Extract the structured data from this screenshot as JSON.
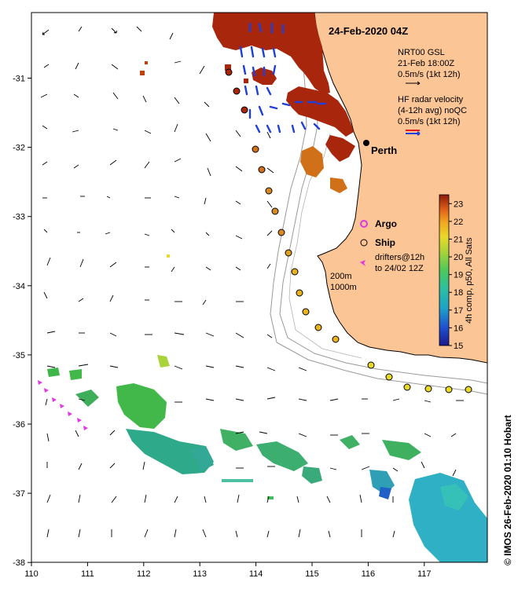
{
  "title": "24-Feb-2020 04Z",
  "city": "Perth",
  "legend": {
    "gsl_line1": "NRT00 GSL",
    "gsl_line2": "21-Feb 18:00Z",
    "gsl_line3": "0.5m/s (1kt 12h)",
    "hf_line1": "HF radar velocity",
    "hf_line2": "(4-12h avg) noQC",
    "hf_line3": "0.5m/s (1kt 12h)",
    "argo": "Argo",
    "ship": "Ship",
    "drifters_line1": "drifters@12h",
    "drifters_line2": "to 24/02 12Z",
    "depth_200": "200m",
    "depth_1000": "1000m"
  },
  "colorbar": {
    "label": "4h comp, p50, All Sats",
    "ticks": [
      "23",
      "22",
      "21",
      "20",
      "19",
      "18",
      "17",
      "16",
      "15"
    ],
    "min": 15,
    "max": 23.5
  },
  "credit": "© IMOS 26-Feb-2020 01:10 Hobart",
  "axes": {
    "x_ticks": [
      "110",
      "111",
      "112",
      "113",
      "114",
      "115",
      "116",
      "117"
    ],
    "y_ticks": [
      "-31",
      "-32",
      "-33",
      "-34",
      "-35",
      "-36",
      "-37",
      "-38"
    ]
  },
  "colors": {
    "land": "#fbc596",
    "warm_sst": "#a8260c",
    "hf_arrow": "#1f3fd9",
    "hf_legend_red": "#e81b1b",
    "argo": "#e038e0",
    "ship": "#e8b321"
  }
}
